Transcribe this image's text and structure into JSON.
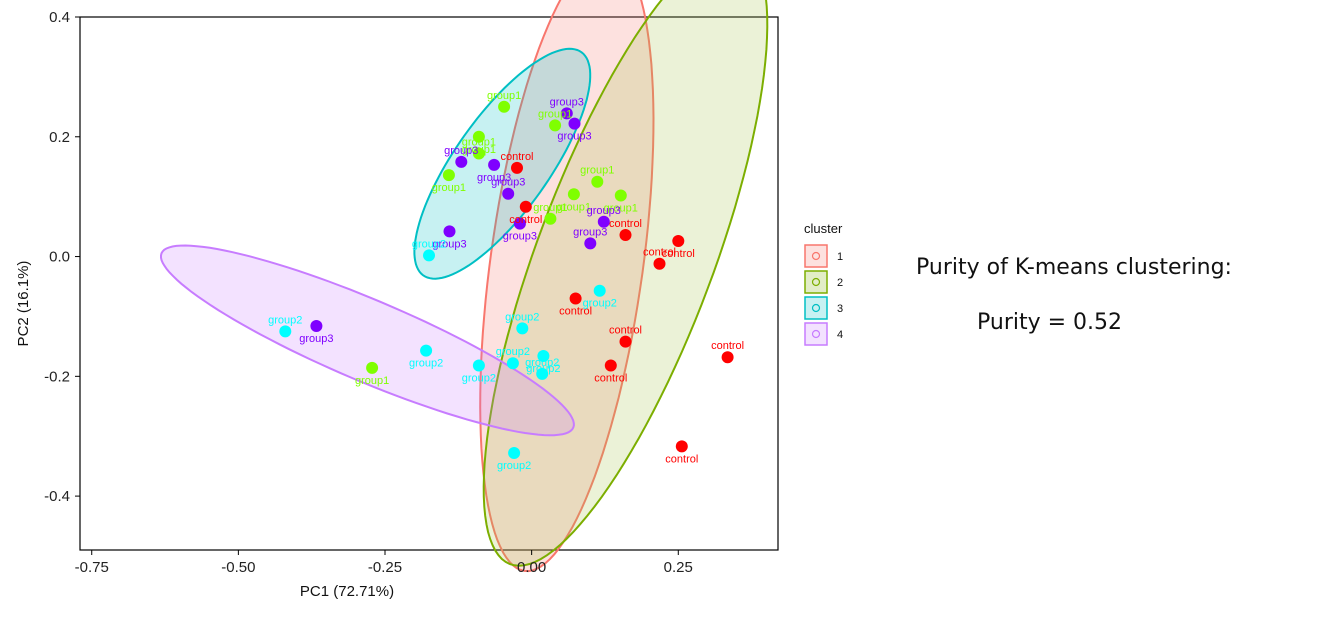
{
  "annotation": {
    "purity_title": "Purity of K-means clustering:",
    "purity_value": "Purity = 0.52"
  },
  "colors": {
    "control": "#ff0000",
    "group1": "#7fff00",
    "group2": "#00ffff",
    "group3": "#7f00ff"
  },
  "chart_data": {
    "type": "scatter",
    "xlabel": "PC1 (72.71%)",
    "ylabel": "PC2 (16.1%)",
    "xlim": [
      -0.77,
      0.42
    ],
    "ylim": [
      -0.49,
      0.4
    ],
    "xticks": [
      -0.75,
      -0.5,
      -0.25,
      0.0,
      0.25
    ],
    "xtick_labels": [
      "-0.75",
      "-0.50",
      "-0.25",
      "0.00",
      "0.25"
    ],
    "yticks": [
      0.4,
      0.2,
      0.0,
      -0.2,
      -0.4
    ],
    "ytick_labels": [
      "0.4",
      "0.2",
      "0.0",
      "-0.2",
      "-0.4"
    ],
    "grid": false,
    "legend": {
      "title": "cluster",
      "placement": "right",
      "items": [
        {
          "label": "1",
          "color": "#f8766d"
        },
        {
          "label": "2",
          "color": "#7cae00"
        },
        {
          "label": "3",
          "color": "#00bfc4"
        },
        {
          "label": "4",
          "color": "#c77cff"
        }
      ]
    },
    "ellipses": [
      {
        "cluster": "1",
        "cx": 0.06,
        "cy": -0.01,
        "a": 0.52,
        "b": 0.13,
        "angle_deg": 82,
        "stroke": "#f8766d",
        "fill": "#f8766d"
      },
      {
        "cluster": "2",
        "cx": 0.16,
        "cy": 0.0,
        "a": 0.55,
        "b": 0.15,
        "angle_deg": 69,
        "stroke": "#7cae00",
        "fill": "#a3c24b"
      },
      {
        "cluster": "3",
        "cx": -0.05,
        "cy": 0.155,
        "a": 0.23,
        "b": 0.08,
        "angle_deg": 54,
        "stroke": "#00bfc4",
        "fill": "#00bfc4"
      },
      {
        "cluster": "4",
        "cx": -0.28,
        "cy": -0.14,
        "a": 0.38,
        "b": 0.068,
        "angle_deg": -22.5,
        "stroke": "#c77cff",
        "fill": "#c77cff"
      }
    ],
    "points": [
      {
        "group": "group1",
        "x": -0.047,
        "y": 0.25,
        "label": "group1"
      },
      {
        "group": "group1",
        "x": -0.09,
        "y": 0.2,
        "label": "group1"
      },
      {
        "group": "group1",
        "x": -0.09,
        "y": 0.172,
        "label": "group1"
      },
      {
        "group": "group1",
        "x": -0.141,
        "y": 0.136,
        "label": "group1"
      },
      {
        "group": "group1",
        "x": 0.04,
        "y": 0.219,
        "label": "group1"
      },
      {
        "group": "group1",
        "x": 0.072,
        "y": 0.104,
        "label": "group1"
      },
      {
        "group": "group1",
        "x": 0.112,
        "y": 0.125,
        "label": "group1"
      },
      {
        "group": "group1",
        "x": 0.152,
        "y": 0.102,
        "label": "group1"
      },
      {
        "group": "group1",
        "x": 0.032,
        "y": 0.063,
        "label": "group1"
      },
      {
        "group": "group1",
        "x": -0.272,
        "y": -0.186,
        "label": "group1"
      },
      {
        "group": "group3",
        "x": 0.06,
        "y": 0.239,
        "label": "group3"
      },
      {
        "group": "group3",
        "x": 0.073,
        "y": 0.222,
        "label": "group3"
      },
      {
        "group": "group3",
        "x": -0.12,
        "y": 0.158,
        "label": "group3"
      },
      {
        "group": "group3",
        "x": -0.064,
        "y": 0.153,
        "label": "group3"
      },
      {
        "group": "group3",
        "x": -0.04,
        "y": 0.105,
        "label": "group3"
      },
      {
        "group": "group3",
        "x": -0.02,
        "y": 0.055,
        "label": "group3"
      },
      {
        "group": "group3",
        "x": 0.123,
        "y": 0.058,
        "label": "group3"
      },
      {
        "group": "group3",
        "x": -0.14,
        "y": 0.042,
        "label": "group3"
      },
      {
        "group": "group3",
        "x": 0.1,
        "y": 0.022,
        "label": "group3"
      },
      {
        "group": "group3",
        "x": -0.367,
        "y": -0.116,
        "label": "group3"
      },
      {
        "group": "control",
        "x": -0.025,
        "y": 0.148,
        "label": "control"
      },
      {
        "group": "control",
        "x": -0.01,
        "y": 0.083,
        "label": "control"
      },
      {
        "group": "control",
        "x": 0.16,
        "y": 0.036,
        "label": "control"
      },
      {
        "group": "control",
        "x": 0.25,
        "y": 0.026,
        "label": "control"
      },
      {
        "group": "control",
        "x": 0.218,
        "y": -0.012,
        "label": "control"
      },
      {
        "group": "control",
        "x": 0.075,
        "y": -0.07,
        "label": "control"
      },
      {
        "group": "control",
        "x": 0.16,
        "y": -0.142,
        "label": "control"
      },
      {
        "group": "control",
        "x": 0.135,
        "y": -0.182,
        "label": "control"
      },
      {
        "group": "control",
        "x": 0.334,
        "y": -0.168,
        "label": "control"
      },
      {
        "group": "control",
        "x": 0.256,
        "y": -0.317,
        "label": "control"
      },
      {
        "group": "group2",
        "x": -0.175,
        "y": 0.002,
        "label": "group2"
      },
      {
        "group": "group2",
        "x": 0.116,
        "y": -0.057,
        "label": "group2"
      },
      {
        "group": "group2",
        "x": -0.42,
        "y": -0.125,
        "label": "group2"
      },
      {
        "group": "group2",
        "x": -0.18,
        "y": -0.157,
        "label": "group2"
      },
      {
        "group": "group2",
        "x": -0.016,
        "y": -0.12,
        "label": "group2"
      },
      {
        "group": "group2",
        "x": -0.09,
        "y": -0.182,
        "label": "group2"
      },
      {
        "group": "group2",
        "x": -0.032,
        "y": -0.178,
        "label": "group2"
      },
      {
        "group": "group2",
        "x": 0.02,
        "y": -0.166,
        "label": "group2"
      },
      {
        "group": "group2",
        "x": 0.018,
        "y": -0.196,
        "label": "group2"
      },
      {
        "group": "group2",
        "x": -0.03,
        "y": -0.328,
        "label": "group2"
      }
    ]
  }
}
